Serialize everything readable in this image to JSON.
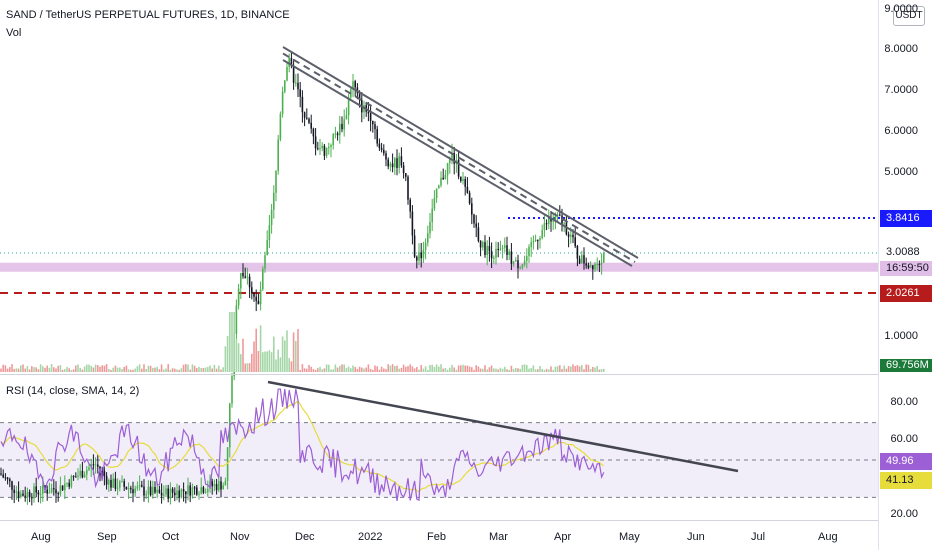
{
  "header": {
    "title": "SAND / TetherUS PERPETUAL FUTURES, 1D, BINANCE",
    "volume_label": "Vol",
    "unit": "USDT"
  },
  "rsi": {
    "legend": "RSI (14, close, SMA, 14, 2)",
    "axis_ticks": [
      "80.00",
      "60.00",
      "20.00"
    ],
    "rsi_value": "49.96",
    "sma_value": "41.13"
  },
  "price_axis": {
    "ticks": [
      "9.0000",
      "8.0000",
      "7.0000",
      "6.0000",
      "5.0000",
      "1.0000"
    ],
    "resistance_tag": "3.8416",
    "last_price_tag": "3.0088",
    "countdown_tag": "16:59:50",
    "support_tag": "2.0261",
    "volume_tag": "69.756M"
  },
  "time_axis": {
    "labels": [
      "Aug",
      "Sep",
      "Oct",
      "Nov",
      "Dec",
      "2022",
      "Feb",
      "Mar",
      "Apr",
      "May",
      "Jun",
      "Jul",
      "Aug"
    ]
  },
  "colors": {
    "up": "#26a69a",
    "up_candle": "#4caf50",
    "down": "#131722",
    "resistance": "#1a1aff",
    "support": "#b71c1c",
    "rsi_line": "#9c5fd6",
    "rsi_sma": "#e6dc3c",
    "zone": "#e1bee7",
    "trendline": "#5d606b"
  },
  "chart_data": {
    "type": "candlestick",
    "price_ticks": [
      9,
      8,
      7,
      6,
      5,
      1
    ],
    "resistance_level": 3.8416,
    "last_price": 3.0088,
    "support_level": 2.0261,
    "rsi_ticks": [
      80,
      60,
      20
    ],
    "rsi_last": 49.96,
    "rsi_sma_last": 41.13
  }
}
